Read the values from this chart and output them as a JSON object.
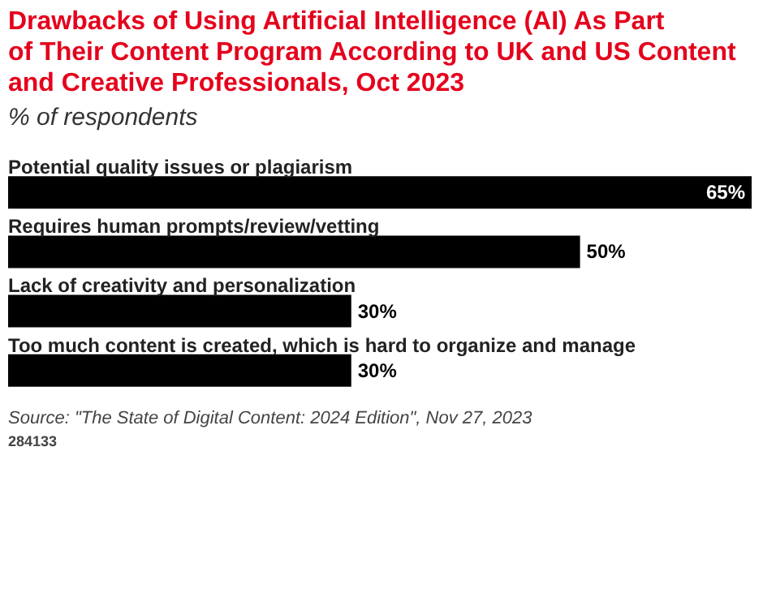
{
  "chart_data": {
    "type": "bar",
    "orientation": "horizontal",
    "title": "Drawbacks of Using Artificial Intelligence (AI) As Part of Their Content Program According to UK and US Content and Creative Professionals, Oct 2023",
    "subtitle": "% of respondents",
    "categories": [
      "Potential quality issues or plagiarism",
      "Requires human prompts/review/vetting",
      "Lack of creativity and personalization",
      "Too much content is created, which is hard to organize and manage"
    ],
    "values": [
      65,
      50,
      30,
      30
    ],
    "value_labels": [
      "65%",
      "50%",
      "30%",
      "30%"
    ],
    "color": "#000000",
    "grid": false,
    "annotations": [
      "Source: \"The State of Digital Content: 2024 Edition\", Nov 27, 2023",
      "284133"
    ]
  }
}
